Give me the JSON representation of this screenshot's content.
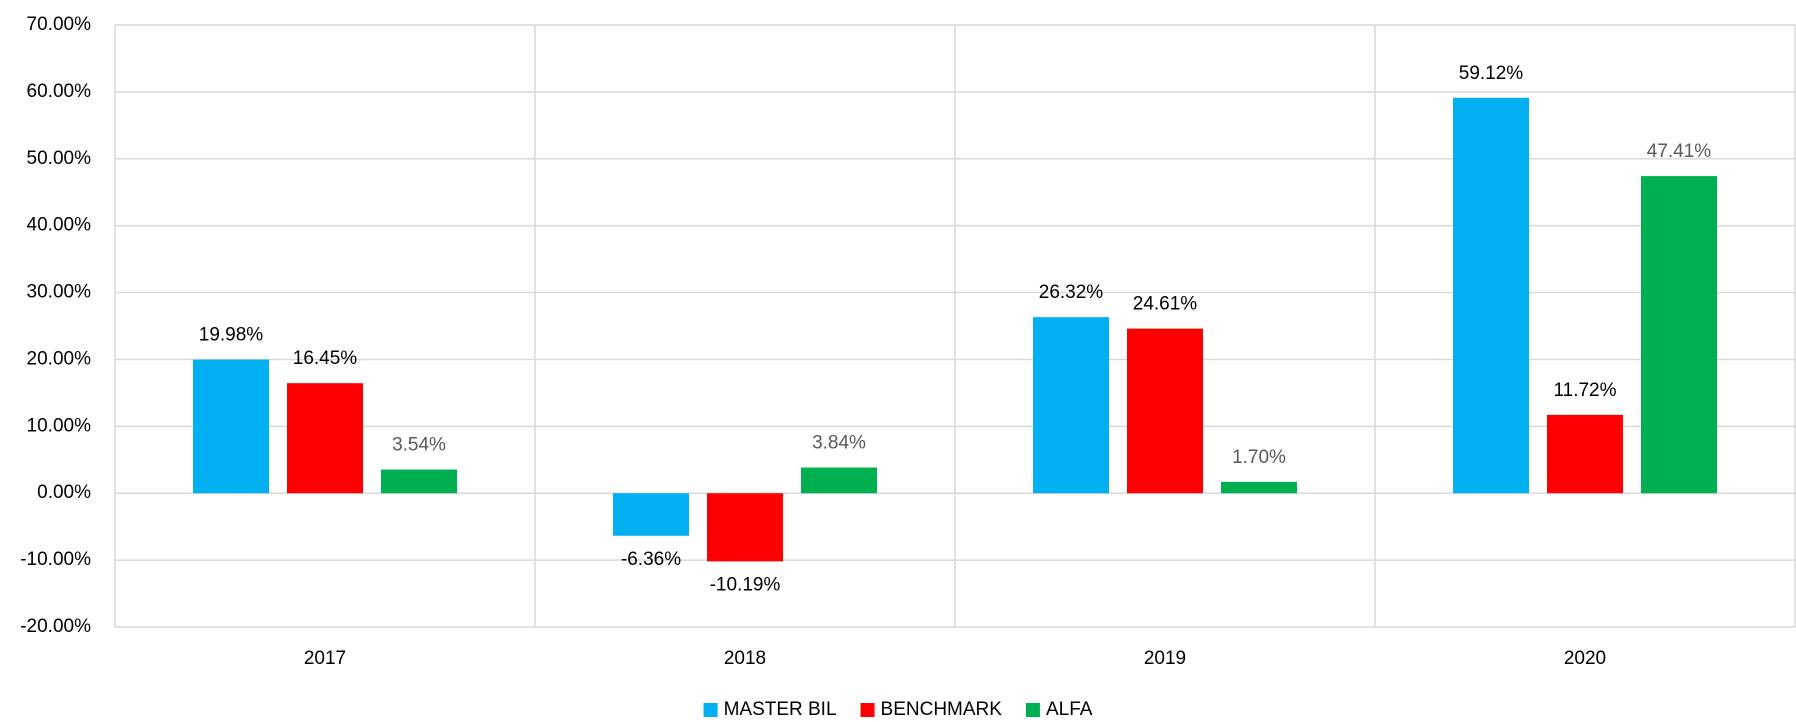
{
  "chart_data": {
    "type": "bar",
    "categories": [
      "2017",
      "2018",
      "2019",
      "2020"
    ],
    "series": [
      {
        "name": "MASTER BIL",
        "color": "#00b0f0",
        "values": [
          19.98,
          -6.36,
          26.32,
          59.12
        ],
        "value_labels": [
          "19.98%",
          "-6.36%",
          "26.32%",
          "59.12%"
        ],
        "label_color": "#000000"
      },
      {
        "name": "BENCHMARK",
        "color": "#ff0000",
        "values": [
          16.45,
          -10.19,
          24.61,
          11.72
        ],
        "value_labels": [
          "16.45%",
          "-10.19%",
          "24.61%",
          "11.72%"
        ],
        "label_color": "#000000"
      },
      {
        "name": "ALFA",
        "color": "#00b050",
        "values": [
          3.54,
          3.84,
          1.7,
          47.41
        ],
        "value_labels": [
          "3.54%",
          "3.84%",
          "1.70%",
          "47.41%"
        ],
        "label_color": "#595959"
      }
    ],
    "ylim": [
      -20,
      70
    ],
    "yticks": [
      {
        "value": -20,
        "label": "-20.00%"
      },
      {
        "value": -10,
        "label": "-10.00%"
      },
      {
        "value": 0,
        "label": "0.00%"
      },
      {
        "value": 10,
        "label": "10.00%"
      },
      {
        "value": 20,
        "label": "20.00%"
      },
      {
        "value": 30,
        "label": "30.00%"
      },
      {
        "value": 40,
        "label": "40.00%"
      },
      {
        "value": 50,
        "label": "50.00%"
      },
      {
        "value": 60,
        "label": "60.00%"
      },
      {
        "value": 70,
        "label": "70.00%"
      }
    ],
    "grid": true,
    "legend": "bottom"
  }
}
